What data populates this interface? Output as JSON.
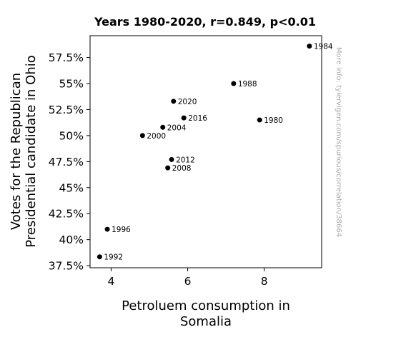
{
  "chart_data": {
    "type": "scatter",
    "title": "Years 1980-2020, r=0.849, p<0.01",
    "xlabel": [
      "Petroluem consumption in",
      "Somalia"
    ],
    "ylabel": [
      "Votes for the Republican",
      "Presidential candidate in Ohio"
    ],
    "xlim": [
      3.45,
      9.5
    ],
    "ylim": [
      37.3,
      59.6
    ],
    "xticks": [
      {
        "value": 4,
        "label": "4"
      },
      {
        "value": 6,
        "label": "6"
      },
      {
        "value": 8,
        "label": "8"
      }
    ],
    "yticks": [
      {
        "value": 37.5,
        "label": "37.5%"
      },
      {
        "value": 40,
        "label": "40%"
      },
      {
        "value": 42.5,
        "label": "42.5%"
      },
      {
        "value": 45,
        "label": "45%"
      },
      {
        "value": 47.5,
        "label": "47.5%"
      },
      {
        "value": 50,
        "label": "50%"
      },
      {
        "value": 52.5,
        "label": "52.5%"
      },
      {
        "value": 55,
        "label": "55%"
      },
      {
        "value": 57.5,
        "label": "57.5%"
      }
    ],
    "points": [
      {
        "label": "1980",
        "x": 7.88,
        "y": 51.5
      },
      {
        "label": "1984",
        "x": 9.18,
        "y": 58.6
      },
      {
        "label": "1988",
        "x": 7.2,
        "y": 55.0
      },
      {
        "label": "1992",
        "x": 3.7,
        "y": 38.35
      },
      {
        "label": "1996",
        "x": 3.9,
        "y": 41.0
      },
      {
        "label": "2000",
        "x": 4.82,
        "y": 50.0
      },
      {
        "label": "2004",
        "x": 5.35,
        "y": 50.8
      },
      {
        "label": "2008",
        "x": 5.48,
        "y": 46.9
      },
      {
        "label": "2012",
        "x": 5.58,
        "y": 47.7
      },
      {
        "label": "2016",
        "x": 5.9,
        "y": 51.7
      },
      {
        "label": "2020",
        "x": 5.63,
        "y": 53.3
      }
    ],
    "grid": false,
    "marker_color": "#000000"
  },
  "watermark": "More info: tylervigen.com/spurious/correlation/38664"
}
